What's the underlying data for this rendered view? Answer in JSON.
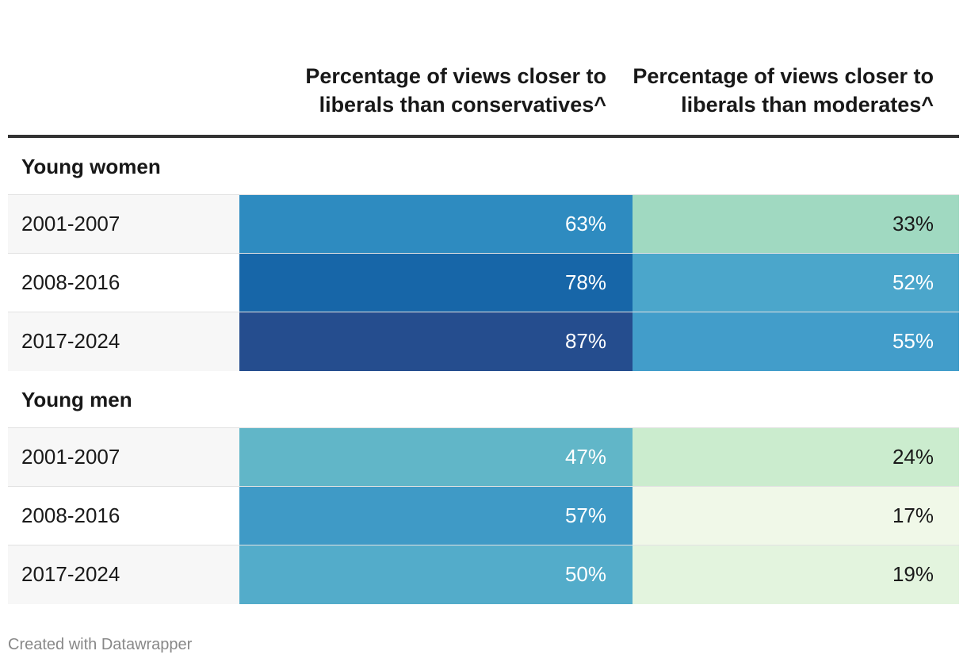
{
  "columns": {
    "c1_label": "Percentage of views closer to liberals than conservatives^",
    "c2_label": "Percentage of views closer to liberals than moderates^"
  },
  "footer": "Created with Datawrapper",
  "chart_data": {
    "type": "table",
    "columns": [
      "",
      "Percentage of views closer to liberals than conservatives^",
      "Percentage of views closer to liberals than moderates^"
    ],
    "groups": [
      {
        "title": "Young women",
        "rows": [
          {
            "label": "2001-2007",
            "c1": "63%",
            "c2": "33%",
            "c1_value": 63,
            "c2_value": 33,
            "c1_bg": "#2e8bc0",
            "c2_bg": "#a0d9c1",
            "c1_fg": "#ffffff",
            "c2_fg": "#1a1a1a"
          },
          {
            "label": "2008-2016",
            "c1": "78%",
            "c2": "52%",
            "c1_value": 78,
            "c2_value": 52,
            "c1_bg": "#1766a8",
            "c2_bg": "#4ba6cb",
            "c1_fg": "#ffffff",
            "c2_fg": "#ffffff"
          },
          {
            "label": "2017-2024",
            "c1": "87%",
            "c2": "55%",
            "c1_value": 87,
            "c2_value": 55,
            "c1_bg": "#254d8e",
            "c2_bg": "#429dca",
            "c1_fg": "#ffffff",
            "c2_fg": "#ffffff"
          }
        ]
      },
      {
        "title": "Young men",
        "rows": [
          {
            "label": "2001-2007",
            "c1": "47%",
            "c2": "24%",
            "c1_value": 47,
            "c2_value": 24,
            "c1_bg": "#61b6c8",
            "c2_bg": "#cbecce",
            "c1_fg": "#ffffff",
            "c2_fg": "#1a1a1a"
          },
          {
            "label": "2008-2016",
            "c1": "57%",
            "c2": "17%",
            "c1_value": 57,
            "c2_value": 17,
            "c1_bg": "#3f9ac6",
            "c2_bg": "#f0f8e8",
            "c1_fg": "#ffffff",
            "c2_fg": "#1a1a1a"
          },
          {
            "label": "2017-2024",
            "c1": "50%",
            "c2": "19%",
            "c1_value": 50,
            "c2_value": 19,
            "c1_bg": "#53acca",
            "c2_bg": "#e3f4de",
            "c1_fg": "#ffffff",
            "c2_fg": "#1a1a1a"
          }
        ]
      }
    ]
  }
}
